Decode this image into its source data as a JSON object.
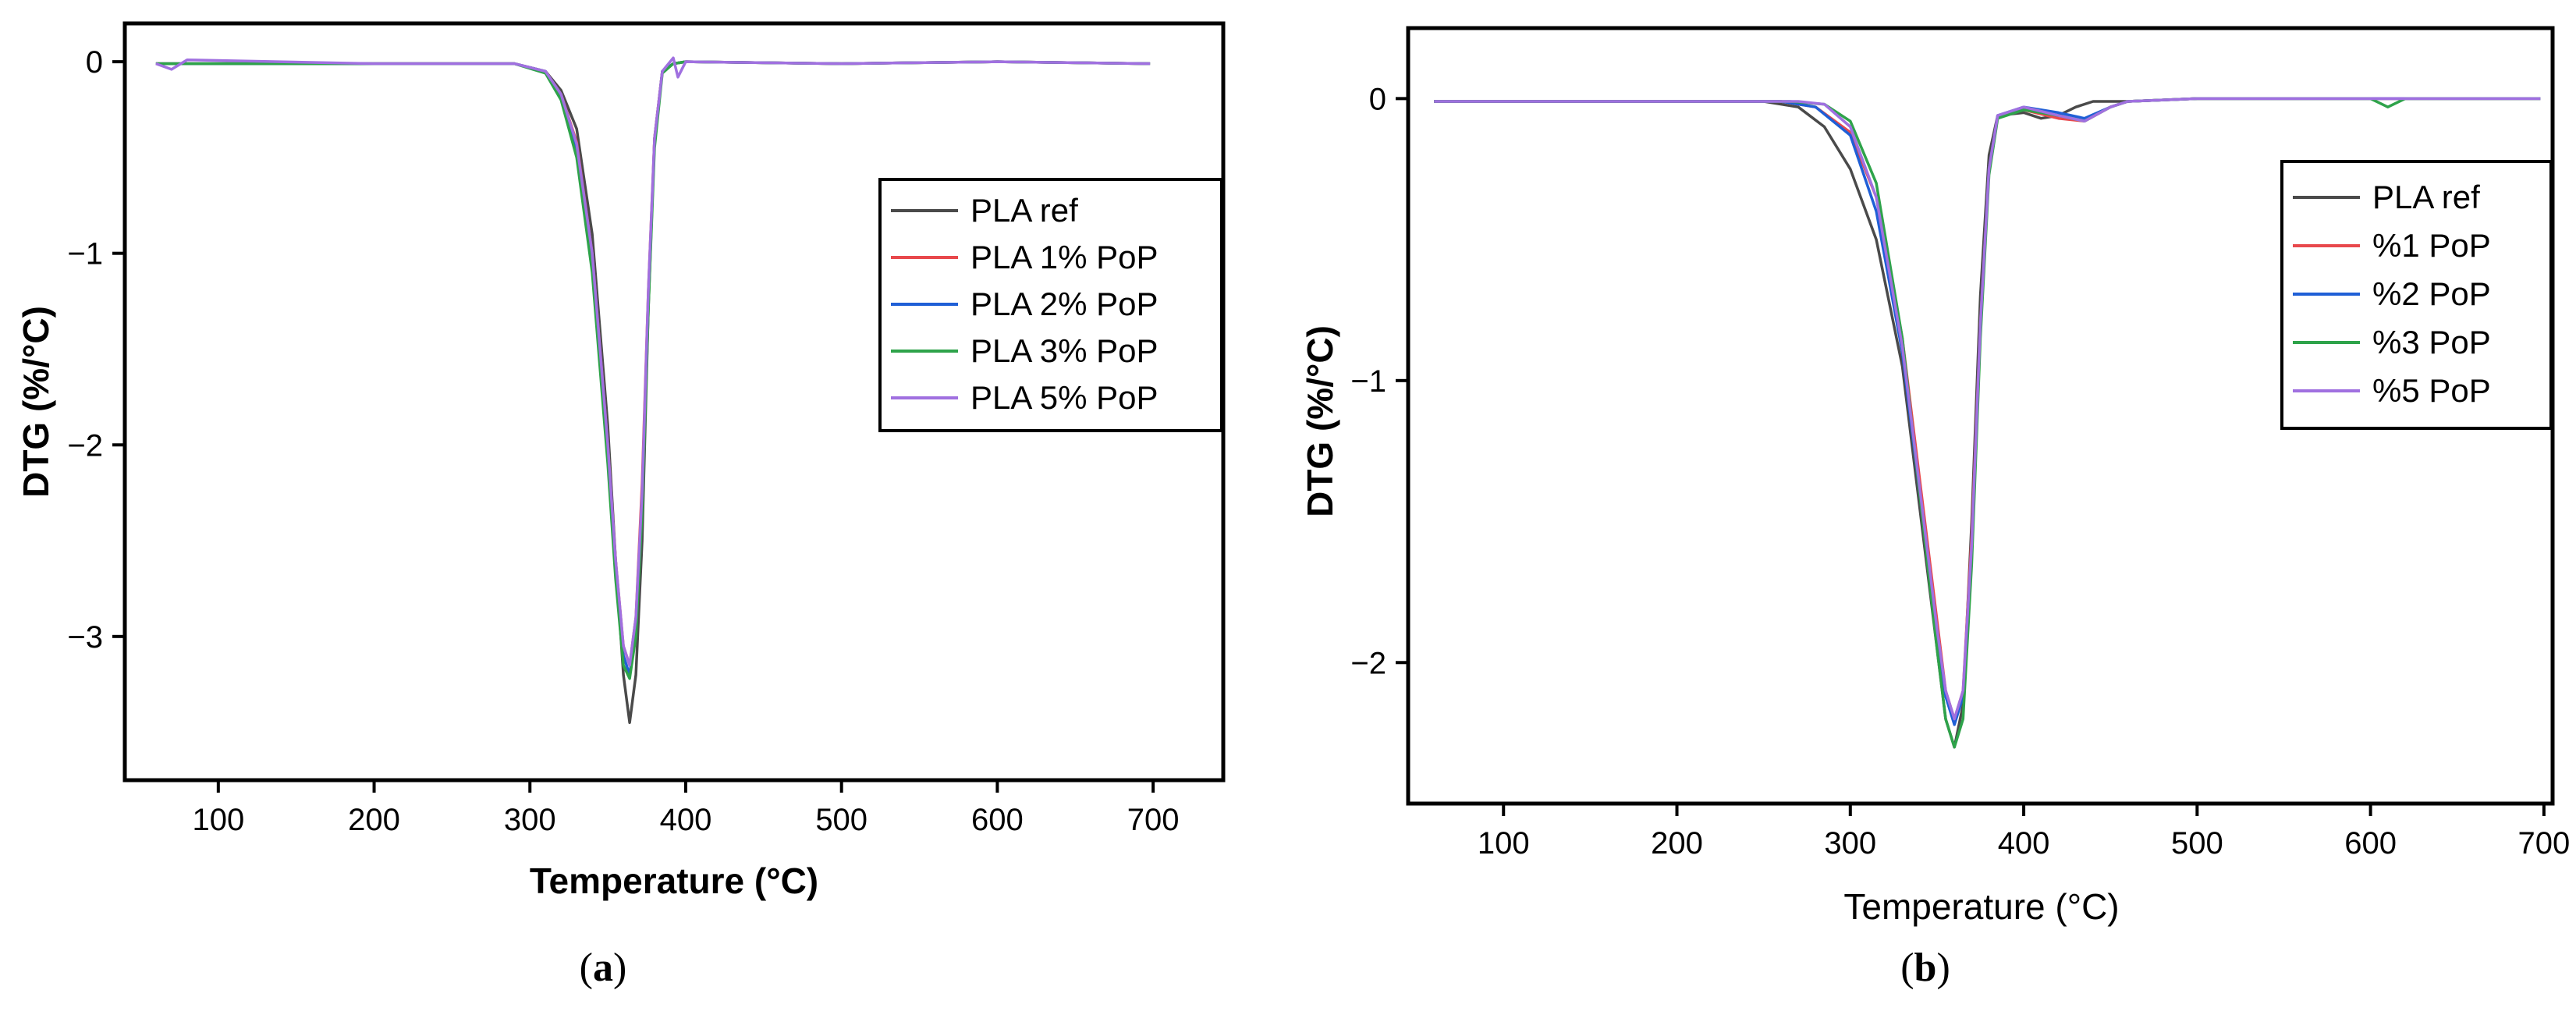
{
  "chart_data": [
    {
      "panel": "a",
      "type": "line",
      "panel_label": "a",
      "xlabel": "Temperature (°C)",
      "ylabel": "DTG (%/°C)",
      "xlim": [
        40,
        745
      ],
      "ylim": [
        -3.75,
        0.2
      ],
      "xticks": [
        100,
        200,
        300,
        400,
        500,
        600,
        700
      ],
      "yticks": [
        0,
        -1,
        -2,
        -3
      ],
      "legend_position": "right",
      "series": [
        {
          "name": "PLA ref",
          "color": "#4a4a4a",
          "x": [
            60,
            200,
            290,
            310,
            320,
            330,
            340,
            350,
            355,
            360,
            364,
            368,
            372,
            376,
            380,
            385,
            392,
            400,
            500,
            600,
            698
          ],
          "y": [
            -0.01,
            -0.01,
            -0.01,
            -0.05,
            -0.15,
            -0.35,
            -0.9,
            -1.9,
            -2.6,
            -3.2,
            -3.45,
            -3.2,
            -2.5,
            -1.3,
            -0.4,
            -0.05,
            -0.01,
            0.0,
            -0.01,
            0.0,
            -0.01
          ]
        },
        {
          "name": "PLA 1% PoP",
          "color": "#e8484c",
          "x": [
            60,
            200,
            290,
            310,
            320,
            330,
            340,
            350,
            355,
            360,
            364,
            368,
            372,
            376,
            380,
            385,
            392,
            400,
            500,
            600,
            698
          ],
          "y": [
            -0.01,
            -0.01,
            -0.01,
            -0.05,
            -0.17,
            -0.42,
            -1.0,
            -2.0,
            -2.6,
            -3.05,
            -3.15,
            -2.9,
            -2.2,
            -1.2,
            -0.4,
            -0.05,
            -0.01,
            0.0,
            -0.01,
            0.0,
            -0.01
          ]
        },
        {
          "name": "PLA 2% PoP",
          "color": "#1f5fd6",
          "x": [
            60,
            200,
            290,
            310,
            320,
            330,
            340,
            350,
            355,
            360,
            364,
            368,
            372,
            376,
            380,
            385,
            392,
            400,
            500,
            600,
            698
          ],
          "y": [
            -0.01,
            -0.01,
            -0.01,
            -0.05,
            -0.18,
            -0.45,
            -1.05,
            -2.05,
            -2.65,
            -3.1,
            -3.2,
            -2.95,
            -2.3,
            -1.25,
            -0.42,
            -0.05,
            -0.01,
            0.0,
            -0.01,
            0.0,
            -0.01
          ]
        },
        {
          "name": "PLA 3% PoP",
          "color": "#2ea34a",
          "x": [
            60,
            200,
            290,
            310,
            320,
            330,
            340,
            350,
            355,
            360,
            364,
            368,
            372,
            376,
            380,
            385,
            392,
            400,
            500,
            600,
            698
          ],
          "y": [
            -0.01,
            -0.01,
            -0.01,
            -0.06,
            -0.2,
            -0.5,
            -1.1,
            -2.1,
            -2.7,
            -3.15,
            -3.22,
            -3.0,
            -2.35,
            -1.3,
            -0.45,
            -0.06,
            -0.01,
            0.0,
            -0.01,
            0.0,
            -0.01
          ]
        },
        {
          "name": "PLA 5% PoP",
          "color": "#a070e0",
          "x": [
            60,
            70,
            80,
            200,
            290,
            310,
            320,
            330,
            340,
            350,
            355,
            360,
            364,
            368,
            372,
            376,
            380,
            385,
            392,
            395,
            400,
            500,
            600,
            698
          ],
          "y": [
            -0.01,
            -0.04,
            0.01,
            -0.01,
            -0.01,
            -0.05,
            -0.17,
            -0.43,
            -1.0,
            -2.0,
            -2.6,
            -3.05,
            -3.15,
            -2.9,
            -2.25,
            -1.2,
            -0.4,
            -0.05,
            0.02,
            -0.08,
            0.0,
            -0.01,
            0.0,
            -0.01
          ]
        }
      ]
    },
    {
      "panel": "b",
      "type": "line",
      "panel_label": "b",
      "xlabel": "Temperature (°C)",
      "ylabel": "DTG (%/°C)",
      "xlim": [
        45,
        705
      ],
      "ylim": [
        -2.5,
        0.25
      ],
      "xticks": [
        100,
        200,
        300,
        400,
        500,
        600,
        700
      ],
      "yticks": [
        0,
        -1,
        -2
      ],
      "legend_position": "right",
      "series": [
        {
          "name": "PLA ref",
          "color": "#4a4a4a",
          "x": [
            60,
            200,
            250,
            270,
            285,
            300,
            315,
            330,
            340,
            350,
            355,
            360,
            365,
            370,
            375,
            380,
            385,
            400,
            410,
            420,
            430,
            440,
            450,
            460,
            500,
            600,
            698
          ],
          "y": [
            -0.01,
            -0.01,
            -0.01,
            -0.03,
            -0.1,
            -0.25,
            -0.5,
            -0.95,
            -1.45,
            -1.95,
            -2.2,
            -2.3,
            -2.15,
            -1.5,
            -0.7,
            -0.2,
            -0.06,
            -0.05,
            -0.07,
            -0.06,
            -0.03,
            -0.01,
            -0.01,
            -0.01,
            0.0,
            0.0,
            0.0
          ]
        },
        {
          "name": "%1 PoP",
          "color": "#e8484c",
          "x": [
            60,
            200,
            260,
            280,
            300,
            315,
            330,
            340,
            350,
            355,
            360,
            365,
            370,
            375,
            380,
            385,
            400,
            420,
            435,
            450,
            460,
            500,
            600,
            698
          ],
          "y": [
            -0.01,
            -0.01,
            -0.01,
            -0.03,
            -0.12,
            -0.35,
            -0.85,
            -1.35,
            -1.85,
            -2.1,
            -2.2,
            -2.1,
            -1.55,
            -0.8,
            -0.25,
            -0.06,
            -0.04,
            -0.07,
            -0.08,
            -0.03,
            -0.01,
            0.0,
            0.0,
            0.0
          ]
        },
        {
          "name": "%2 PoP",
          "color": "#1f5fd6",
          "x": [
            60,
            200,
            260,
            280,
            300,
            315,
            330,
            340,
            350,
            355,
            360,
            365,
            370,
            375,
            380,
            385,
            400,
            420,
            435,
            450,
            460,
            500,
            600,
            698
          ],
          "y": [
            -0.01,
            -0.01,
            -0.01,
            -0.03,
            -0.13,
            -0.4,
            -0.9,
            -1.4,
            -1.9,
            -2.12,
            -2.22,
            -2.12,
            -1.6,
            -0.82,
            -0.25,
            -0.06,
            -0.03,
            -0.05,
            -0.07,
            -0.03,
            -0.01,
            0.0,
            0.0,
            0.0
          ]
        },
        {
          "name": "%3 PoP",
          "color": "#2ea34a",
          "x": [
            60,
            200,
            265,
            285,
            300,
            315,
            330,
            340,
            350,
            355,
            360,
            365,
            370,
            375,
            380,
            385,
            400,
            420,
            435,
            450,
            460,
            500,
            600,
            610,
            620,
            698
          ],
          "y": [
            -0.01,
            -0.01,
            -0.01,
            -0.02,
            -0.08,
            -0.3,
            -0.85,
            -1.4,
            -1.95,
            -2.2,
            -2.3,
            -2.2,
            -1.65,
            -0.85,
            -0.27,
            -0.07,
            -0.04,
            -0.06,
            -0.08,
            -0.03,
            -0.01,
            0.0,
            0.0,
            -0.03,
            0.0,
            0.0
          ]
        },
        {
          "name": "%5 PoP",
          "color": "#a070e0",
          "x": [
            60,
            200,
            270,
            285,
            300,
            315,
            330,
            340,
            350,
            355,
            360,
            365,
            370,
            375,
            380,
            385,
            400,
            420,
            435,
            450,
            460,
            500,
            600,
            698
          ],
          "y": [
            -0.01,
            -0.01,
            -0.01,
            -0.02,
            -0.1,
            -0.35,
            -0.88,
            -1.38,
            -1.88,
            -2.1,
            -2.2,
            -2.1,
            -1.58,
            -0.8,
            -0.25,
            -0.06,
            -0.03,
            -0.06,
            -0.08,
            -0.03,
            -0.01,
            0.0,
            0.0,
            0.0
          ]
        }
      ]
    }
  ]
}
